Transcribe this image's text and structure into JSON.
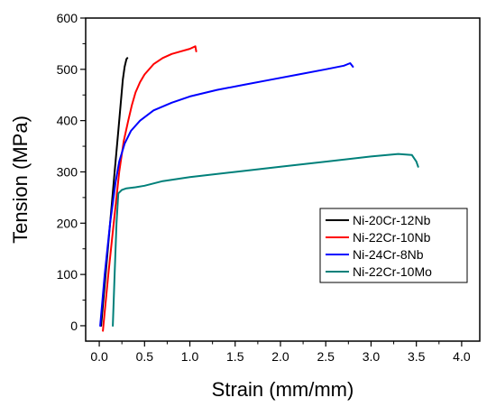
{
  "chart_data": {
    "type": "line",
    "title": "",
    "xlabel": "Strain (mm/mm)",
    "ylabel": "Tension (MPa)",
    "xlim": [
      -0.15,
      4.2
    ],
    "ylim": [
      -30,
      600
    ],
    "xticks": [
      "0.0",
      "0.5",
      "1.0",
      "1.5",
      "2.0",
      "2.5",
      "3.0",
      "3.5",
      "4.0"
    ],
    "yticks": [
      "0",
      "100",
      "200",
      "300",
      "400",
      "500",
      "600"
    ],
    "grid": false,
    "legend_position": "bottom-right",
    "series": [
      {
        "name": "Ni-20Cr-12Nb",
        "color": "#000000",
        "x": [
          0.02,
          0.07,
          0.12,
          0.17,
          0.21,
          0.24,
          0.26,
          0.28,
          0.3,
          0.31
        ],
        "y": [
          0,
          100,
          200,
          300,
          380,
          440,
          480,
          505,
          520,
          522
        ]
      },
      {
        "name": "Ni-22Cr-10Nb",
        "color": "#ff0000",
        "x": [
          0.04,
          0.1,
          0.16,
          0.22,
          0.27,
          0.32,
          0.36,
          0.4,
          0.45,
          0.5,
          0.6,
          0.7,
          0.8,
          0.9,
          1.0,
          1.06,
          1.07
        ],
        "y": [
          -10,
          100,
          200,
          300,
          360,
          400,
          430,
          455,
          475,
          490,
          510,
          522,
          530,
          535,
          540,
          545,
          535
        ]
      },
      {
        "name": "Ni-24Cr-8Nb",
        "color": "#0000ff",
        "x": [
          0.01,
          0.06,
          0.12,
          0.18,
          0.22,
          0.28,
          0.35,
          0.45,
          0.6,
          0.8,
          1.0,
          1.3,
          1.6,
          1.9,
          2.2,
          2.5,
          2.7,
          2.77,
          2.8
        ],
        "y": [
          0,
          100,
          200,
          280,
          320,
          355,
          380,
          400,
          420,
          435,
          447,
          460,
          470,
          480,
          490,
          500,
          507,
          512,
          505
        ]
      },
      {
        "name": "Ni-22Cr-10Mo",
        "color": "#00807a",
        "x": [
          0.15,
          0.17,
          0.19,
          0.21,
          0.25,
          0.3,
          0.4,
          0.5,
          0.7,
          1.0,
          1.5,
          2.0,
          2.5,
          3.0,
          3.3,
          3.45,
          3.5,
          3.52
        ],
        "y": [
          0,
          100,
          200,
          258,
          265,
          268,
          270,
          273,
          282,
          290,
          300,
          310,
          320,
          330,
          335,
          333,
          320,
          310
        ]
      }
    ]
  }
}
